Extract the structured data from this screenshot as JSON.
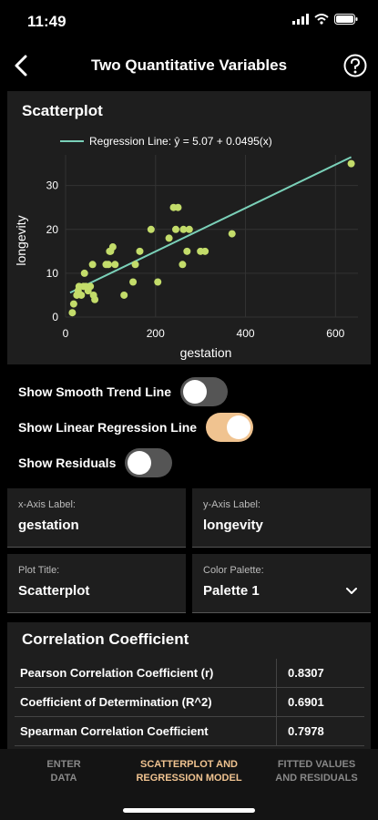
{
  "status": {
    "time": "11:49"
  },
  "nav": {
    "title": "Two Quantitative Variables"
  },
  "plot": {
    "title": "Scatterplot",
    "legend": "Regression Line: ŷ = 5.07 + 0.0495(x)"
  },
  "chart_data": {
    "type": "scatter",
    "title": "",
    "xlabel": "gestation",
    "ylabel": "longevity",
    "xlim": [
      0,
      650
    ],
    "ylim": [
      0,
      37
    ],
    "x_ticks": [
      0,
      200,
      400,
      600
    ],
    "y_ticks": [
      0,
      10,
      20,
      30
    ],
    "series": [
      {
        "name": "",
        "points": [
          [
            15,
            1
          ],
          [
            18,
            3
          ],
          [
            25,
            5
          ],
          [
            28,
            6
          ],
          [
            30,
            7
          ],
          [
            35,
            5
          ],
          [
            40,
            7
          ],
          [
            42,
            10
          ],
          [
            45,
            7
          ],
          [
            50,
            6
          ],
          [
            55,
            7
          ],
          [
            60,
            12
          ],
          [
            62,
            5
          ],
          [
            65,
            4
          ],
          [
            90,
            12
          ],
          [
            95,
            12
          ],
          [
            98,
            15
          ],
          [
            100,
            15
          ],
          [
            105,
            16
          ],
          [
            110,
            12
          ],
          [
            130,
            5
          ],
          [
            150,
            8
          ],
          [
            155,
            12
          ],
          [
            165,
            15
          ],
          [
            190,
            20
          ],
          [
            205,
            8
          ],
          [
            230,
            18
          ],
          [
            240,
            25
          ],
          [
            245,
            20
          ],
          [
            250,
            25
          ],
          [
            260,
            12
          ],
          [
            262,
            20
          ],
          [
            270,
            15
          ],
          [
            275,
            20
          ],
          [
            300,
            15
          ],
          [
            310,
            15
          ],
          [
            370,
            19
          ],
          [
            635,
            35
          ]
        ]
      }
    ],
    "regression": {
      "intercept": 5.07,
      "slope": 0.0495,
      "color": "#7ad0b8"
    },
    "point_color": "#c3dc6a",
    "grid": true
  },
  "controls": {
    "smooth": {
      "label": "Show Smooth Trend Line",
      "on": false
    },
    "linear": {
      "label": "Show Linear Regression Line",
      "on": true
    },
    "residuals": {
      "label": "Show Residuals",
      "on": false
    }
  },
  "fields": {
    "x_axis": {
      "label": "x-Axis Label:",
      "value": "gestation"
    },
    "y_axis": {
      "label": "y-Axis Label:",
      "value": "longevity"
    },
    "plot_title": {
      "label": "Plot Title:",
      "value": "Scatterplot"
    },
    "palette": {
      "label": "Color Palette:",
      "value": "Palette 1"
    }
  },
  "correlation": {
    "title": "Correlation Coefficient",
    "rows": [
      {
        "name": "Pearson Correlation Coefficient (r)",
        "value": "0.8307"
      },
      {
        "name": "Coefficient of Determination (R^2)",
        "value": "0.6901"
      },
      {
        "name": "Spearman Correlation Coefficient",
        "value": "0.7978"
      }
    ]
  },
  "tabs": {
    "t1": {
      "line1": "ENTER",
      "line2": "DATA"
    },
    "t2": {
      "line1": "SCATTERPLOT AND",
      "line2": "REGRESSION MODEL"
    },
    "t3": {
      "line1": "FITTED VALUES",
      "line2": "AND RESIDUALS"
    }
  },
  "colors": {
    "accent": "#f0c390",
    "background": "#000000",
    "panel": "#1e1e1e"
  }
}
